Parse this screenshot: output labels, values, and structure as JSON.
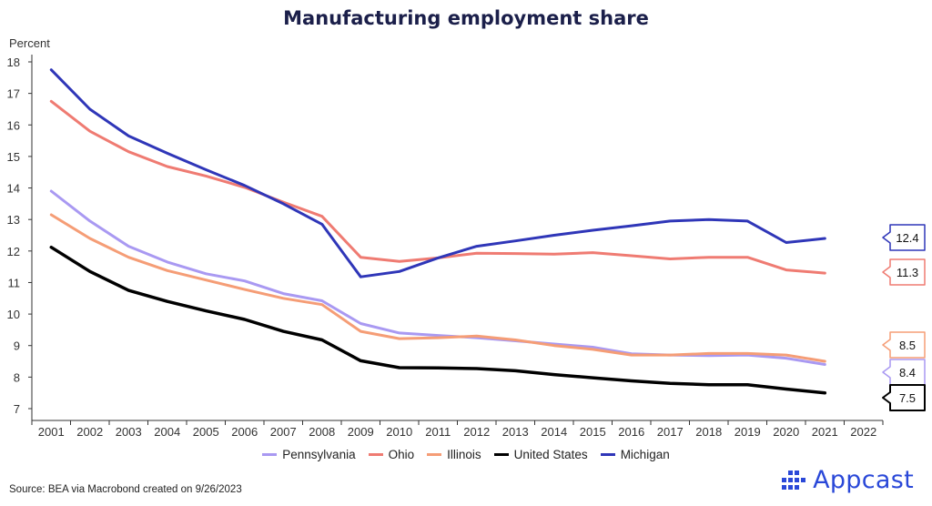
{
  "chart_data": {
    "type": "line",
    "title": "Manufacturing employment share",
    "ylabel": "Percent",
    "xlabel": "",
    "x": [
      2001,
      2002,
      2003,
      2004,
      2005,
      2006,
      2007,
      2008,
      2009,
      2010,
      2011,
      2012,
      2013,
      2014,
      2015,
      2016,
      2017,
      2018,
      2019,
      2020,
      2021
    ],
    "x_ticks": [
      "2001",
      "2002",
      "2003",
      "2004",
      "2005",
      "2006",
      "2007",
      "2008",
      "2009",
      "2010",
      "2011",
      "2012",
      "2013",
      "2014",
      "2015",
      "2016",
      "2017",
      "2018",
      "2019",
      "2020",
      "2021",
      "2022"
    ],
    "ylim": [
      7,
      18
    ],
    "y_ticks": [
      "7",
      "8",
      "9",
      "10",
      "11",
      "12",
      "13",
      "14",
      "15",
      "16",
      "17",
      "18"
    ],
    "grid": false,
    "legend_position": "bottom",
    "series": [
      {
        "name": "Pennsylvania",
        "color": "#a999f2",
        "end_label": "8.4",
        "values": [
          13.9,
          12.95,
          12.15,
          11.65,
          11.28,
          11.05,
          10.65,
          10.42,
          9.7,
          9.4,
          9.32,
          9.25,
          9.15,
          9.05,
          8.95,
          8.74,
          8.7,
          8.68,
          8.7,
          8.6,
          8.4
        ]
      },
      {
        "name": "Ohio",
        "color": "#ef7b72",
        "end_label": "11.3",
        "values": [
          16.75,
          15.8,
          15.15,
          14.68,
          14.38,
          14.02,
          13.55,
          13.1,
          11.8,
          11.67,
          11.78,
          11.93,
          11.92,
          11.9,
          11.95,
          11.85,
          11.75,
          11.8,
          11.8,
          11.4,
          11.3
        ]
      },
      {
        "name": "Illinois",
        "color": "#f59d76",
        "end_label": "8.5",
        "values": [
          13.15,
          12.4,
          11.8,
          11.38,
          11.08,
          10.78,
          10.5,
          10.3,
          9.45,
          9.22,
          9.25,
          9.3,
          9.18,
          9.0,
          8.88,
          8.7,
          8.7,
          8.75,
          8.75,
          8.7,
          8.5
        ]
      },
      {
        "name": "United States",
        "color": "#000000",
        "end_label": "7.5",
        "values": [
          12.12,
          11.35,
          10.75,
          10.4,
          10.1,
          9.83,
          9.45,
          9.18,
          8.52,
          8.3,
          8.29,
          8.27,
          8.2,
          8.08,
          7.98,
          7.88,
          7.8,
          7.76,
          7.76,
          7.62,
          7.5
        ]
      },
      {
        "name": "Michigan",
        "color": "#2f36b8",
        "end_label": "12.4",
        "values": [
          17.75,
          16.5,
          15.65,
          15.1,
          14.58,
          14.08,
          13.5,
          12.85,
          11.18,
          11.35,
          11.78,
          12.15,
          12.32,
          12.5,
          12.66,
          12.8,
          12.95,
          13.0,
          12.95,
          12.27,
          12.4
        ]
      }
    ]
  },
  "legend": {
    "items": [
      {
        "label": "Pennsylvania",
        "color": "#a999f2"
      },
      {
        "label": "Ohio",
        "color": "#ef7b72"
      },
      {
        "label": "Illinois",
        "color": "#f59d76"
      },
      {
        "label": "United States",
        "color": "#000000"
      },
      {
        "label": "Michigan",
        "color": "#2f36b8"
      }
    ]
  },
  "footer": {
    "source": "Source: BEA via Macrobond created on 9/26/2023",
    "brand": "Appcast",
    "brand_color": "#2a48d8",
    "brand_icon": "dot-grid-logo"
  }
}
